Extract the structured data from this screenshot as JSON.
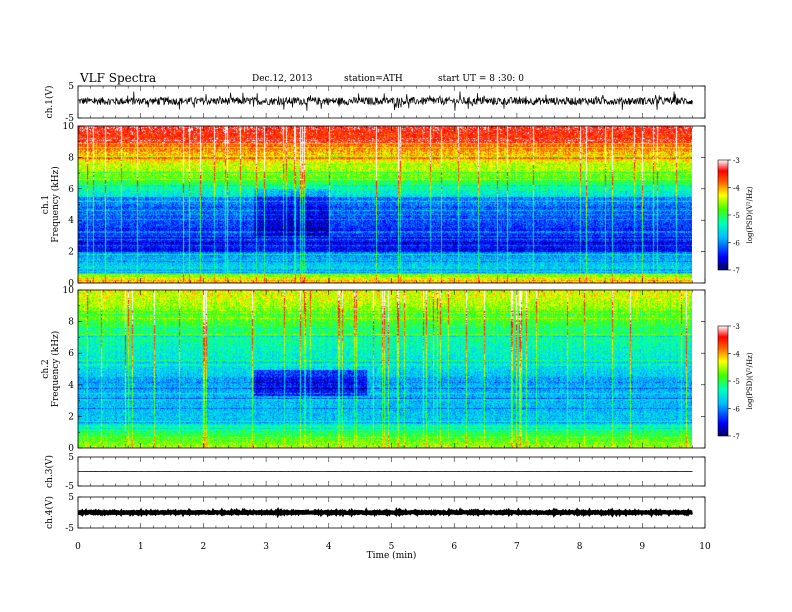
{
  "header": {
    "title": "VLF  Spectra",
    "date": "Dec.12, 2013",
    "station": "station=ATH",
    "start": "start  UT  =   8  :30: 0"
  },
  "chart_data": [
    {
      "id": "ch1-waveform",
      "type": "line",
      "ylabel": "ch.1(V)",
      "ylim": [
        -5,
        5
      ],
      "yticks": [
        "5",
        "-5"
      ],
      "xlim": [
        0,
        10
      ],
      "baseline": 0.3,
      "amplitude": 1.2
    },
    {
      "id": "ch1-spectrogram",
      "type": "heatmap",
      "ylabel": "ch.1\nFrequency (kHz)",
      "ylim": [
        0,
        10
      ],
      "yticks": [
        "0",
        "2",
        "4",
        "6",
        "8",
        "10"
      ],
      "xlim": [
        0,
        9.8
      ],
      "colorbar": {
        "label": "log(PSD)(V²/Hz)",
        "range": [
          -7,
          -3
        ],
        "ticks": [
          "-3",
          "-4",
          "-5",
          "-6",
          "-7"
        ]
      }
    },
    {
      "id": "ch2-spectrogram",
      "type": "heatmap",
      "ylabel": "ch.2\nFrequency (kHz)",
      "ylim": [
        0,
        10
      ],
      "yticks": [
        "0",
        "2",
        "4",
        "6",
        "8",
        "10"
      ],
      "xlim": [
        0,
        9.8
      ],
      "colorbar": {
        "label": "log(PSD)(V²/Hz)",
        "range": [
          -7,
          -3
        ],
        "ticks": [
          "-3",
          "-4",
          "-5",
          "-6",
          "-7"
        ]
      }
    },
    {
      "id": "ch3-waveform",
      "type": "line",
      "ylabel": "ch.3(V)",
      "ylim": [
        -5,
        5
      ],
      "yticks": [
        "5",
        "-5"
      ],
      "xlim": [
        0,
        10
      ],
      "baseline": 0.0,
      "amplitude": 0.05
    },
    {
      "id": "ch4-waveform",
      "type": "line",
      "ylabel": "ch.4(V)",
      "ylim": [
        -5,
        5
      ],
      "yticks": [
        "5",
        "-5"
      ],
      "xlim": [
        0,
        10
      ],
      "baseline": 0.0,
      "amplitude": 0.2
    }
  ],
  "x_axis": {
    "label": "Time  (min)",
    "ticks": [
      "0",
      "1",
      "2",
      "3",
      "4",
      "5",
      "6",
      "7",
      "8",
      "9",
      "10"
    ]
  },
  "colors": {
    "scale": [
      "#000080",
      "#0000ff",
      "#00a0ff",
      "#00ffff",
      "#00ff80",
      "#80ff00",
      "#ffff00",
      "#ff8000",
      "#ff0000",
      "#ffffff"
    ]
  }
}
